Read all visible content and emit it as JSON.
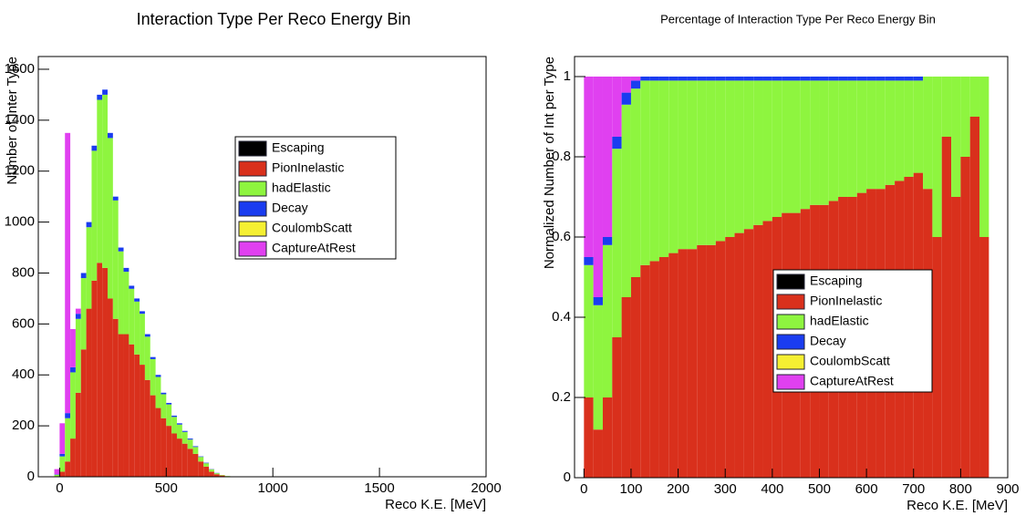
{
  "chart_data": [
    {
      "type": "histogram",
      "title": "Interaction Type Per Reco Energy Bin",
      "x_label": "Reco K.E. [MeV]",
      "y_label": "Number of Inter Type",
      "xlim": [
        -100,
        2000
      ],
      "xticks": [
        0,
        500,
        1000,
        1500,
        2000
      ],
      "ylim": [
        0,
        1650
      ],
      "yticks": [
        0,
        200,
        400,
        600,
        800,
        1000,
        1200,
        1400,
        1600
      ],
      "legend": "upper-center",
      "stacked": true,
      "bins": [
        -25,
        0,
        25,
        50,
        75,
        100,
        125,
        150,
        175,
        200,
        225,
        250,
        275,
        300,
        325,
        350,
        375,
        400,
        425,
        450,
        475,
        500,
        525,
        550,
        575,
        600,
        625,
        650,
        675,
        700,
        725,
        750,
        775,
        800,
        825,
        850
      ],
      "series": [
        {
          "name": "Escaping",
          "color": "#000000",
          "values": [
            0,
            0,
            0,
            0,
            0,
            0,
            0,
            0,
            0,
            0,
            0,
            0,
            0,
            0,
            0,
            0,
            0,
            0,
            0,
            0,
            0,
            0,
            0,
            0,
            0,
            0,
            0,
            0,
            0,
            0,
            0,
            0,
            0,
            0,
            0
          ]
        },
        {
          "name": "PionInelastic",
          "color": "#d9301c",
          "values": [
            0,
            20,
            60,
            150,
            330,
            500,
            660,
            770,
            840,
            820,
            700,
            620,
            560,
            560,
            520,
            480,
            440,
            380,
            320,
            270,
            230,
            200,
            170,
            150,
            130,
            110,
            90,
            60,
            40,
            20,
            10,
            5,
            2,
            1,
            0
          ]
        },
        {
          "name": "hadElastic",
          "color": "#8ef53f",
          "values": [
            8,
            60,
            170,
            260,
            290,
            280,
            320,
            510,
            640,
            680,
            630,
            465,
            325,
            245,
            218,
            208,
            200,
            170,
            142,
            122,
            94,
            84,
            65,
            55,
            46,
            36,
            27,
            18,
            13,
            9,
            4,
            2,
            1,
            0,
            0
          ]
        },
        {
          "name": "Decay",
          "color": "#1a3cf0",
          "values": [
            2,
            10,
            20,
            20,
            20,
            20,
            20,
            20,
            20,
            20,
            20,
            15,
            15,
            15,
            12,
            12,
            10,
            10,
            8,
            8,
            6,
            6,
            5,
            5,
            4,
            4,
            3,
            2,
            2,
            1,
            1,
            0,
            0,
            0,
            0
          ]
        },
        {
          "name": "CoulombScatt",
          "color": "#f5f032",
          "values": [
            0,
            0,
            0,
            0,
            0,
            0,
            0,
            0,
            0,
            0,
            0,
            0,
            0,
            0,
            0,
            0,
            0,
            0,
            0,
            0,
            0,
            0,
            0,
            0,
            0,
            0,
            0,
            0,
            0,
            0,
            0,
            0,
            0,
            0,
            0
          ]
        },
        {
          "name": "CaptureAtRest",
          "color": "#e040f0",
          "values": [
            20,
            120,
            1100,
            150,
            20,
            0,
            0,
            0,
            0,
            0,
            0,
            0,
            0,
            0,
            0,
            0,
            0,
            0,
            0,
            0,
            0,
            0,
            0,
            0,
            0,
            0,
            0,
            0,
            0,
            0,
            0,
            0,
            0,
            0,
            0
          ]
        }
      ]
    },
    {
      "type": "histogram",
      "title": "Percentage of Interaction Type Per Reco Energy Bin",
      "x_label": "Reco K.E. [MeV]",
      "y_label": "Normalized Number of Int per Type",
      "xlim": [
        -20,
        900
      ],
      "xticks": [
        0,
        100,
        200,
        300,
        400,
        500,
        600,
        700,
        800,
        900
      ],
      "ylim": [
        0,
        1.05
      ],
      "yticks": [
        0,
        0.2,
        0.4,
        0.6,
        0.8,
        1
      ],
      "legend": "lower-right",
      "stacked": true,
      "bins": [
        0,
        20,
        40,
        60,
        80,
        100,
        120,
        140,
        160,
        180,
        200,
        220,
        240,
        260,
        280,
        300,
        320,
        340,
        360,
        380,
        400,
        420,
        440,
        460,
        480,
        500,
        520,
        540,
        560,
        580,
        600,
        620,
        640,
        660,
        680,
        700,
        720,
        740,
        760,
        780,
        800,
        820,
        840,
        860
      ],
      "series": [
        {
          "name": "Escaping",
          "color": "#000000",
          "values": [
            0,
            0,
            0,
            0,
            0,
            0,
            0,
            0,
            0,
            0,
            0,
            0,
            0,
            0,
            0,
            0,
            0,
            0,
            0,
            0,
            0,
            0,
            0,
            0,
            0,
            0,
            0,
            0,
            0,
            0,
            0,
            0,
            0,
            0,
            0,
            0,
            0,
            0,
            0,
            0,
            0,
            0,
            0
          ]
        },
        {
          "name": "PionInelastic",
          "color": "#d9301c",
          "values": [
            0.2,
            0.12,
            0.2,
            0.35,
            0.45,
            0.5,
            0.53,
            0.54,
            0.55,
            0.56,
            0.57,
            0.57,
            0.58,
            0.58,
            0.59,
            0.6,
            0.61,
            0.62,
            0.63,
            0.64,
            0.65,
            0.66,
            0.66,
            0.67,
            0.68,
            0.68,
            0.69,
            0.7,
            0.7,
            0.71,
            0.72,
            0.72,
            0.73,
            0.74,
            0.75,
            0.76,
            0.72,
            0.6,
            0.85,
            0.7,
            0.8,
            0.9,
            0.6
          ]
        },
        {
          "name": "hadElastic",
          "color": "#8ef53f",
          "values": [
            0.33,
            0.31,
            0.38,
            0.47,
            0.48,
            0.47,
            0.46,
            0.45,
            0.44,
            0.43,
            0.42,
            0.42,
            0.41,
            0.41,
            0.4,
            0.39,
            0.38,
            0.37,
            0.36,
            0.35,
            0.34,
            0.33,
            0.33,
            0.32,
            0.31,
            0.31,
            0.3,
            0.29,
            0.29,
            0.28,
            0.27,
            0.27,
            0.26,
            0.25,
            0.24,
            0.23,
            0.28,
            0.4,
            0.15,
            0.3,
            0.2,
            0.1,
            0.4
          ]
        },
        {
          "name": "Decay",
          "color": "#1a3cf0",
          "values": [
            0.02,
            0.02,
            0.02,
            0.03,
            0.03,
            0.02,
            0.01,
            0.01,
            0.01,
            0.01,
            0.01,
            0.01,
            0.01,
            0.01,
            0.01,
            0.01,
            0.01,
            0.01,
            0.01,
            0.01,
            0.01,
            0.01,
            0.01,
            0.01,
            0.01,
            0.01,
            0.01,
            0.01,
            0.01,
            0.01,
            0.01,
            0.01,
            0.01,
            0.01,
            0.01,
            0.01,
            0,
            0,
            0,
            0,
            0,
            0,
            0
          ]
        },
        {
          "name": "CoulombScatt",
          "color": "#f5f032",
          "values": [
            0,
            0,
            0,
            0,
            0,
            0,
            0,
            0,
            0,
            0,
            0,
            0,
            0,
            0,
            0,
            0,
            0,
            0,
            0,
            0,
            0,
            0,
            0,
            0,
            0,
            0,
            0,
            0,
            0,
            0,
            0,
            0,
            0,
            0,
            0,
            0,
            0,
            0,
            0,
            0,
            0,
            0,
            0
          ]
        },
        {
          "name": "CaptureAtRest",
          "color": "#e040f0",
          "values": [
            0.45,
            0.55,
            0.4,
            0.15,
            0.04,
            0.01,
            0,
            0,
            0,
            0,
            0,
            0,
            0,
            0,
            0,
            0,
            0,
            0,
            0,
            0,
            0,
            0,
            0,
            0,
            0,
            0,
            0,
            0,
            0,
            0,
            0,
            0,
            0,
            0,
            0,
            0,
            0,
            0,
            0,
            0,
            0,
            0,
            0
          ]
        }
      ]
    }
  ]
}
